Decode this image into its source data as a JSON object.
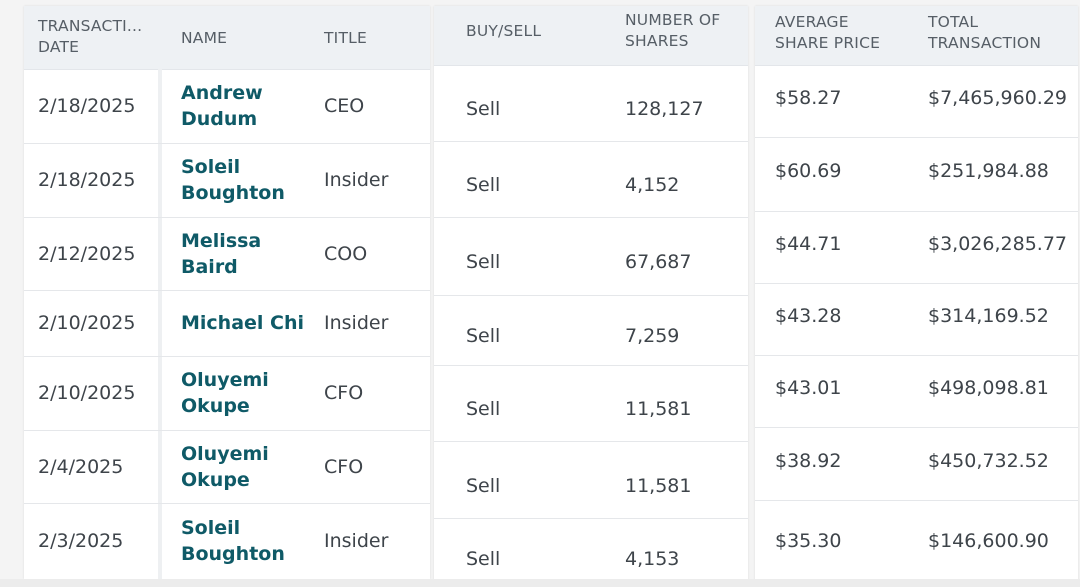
{
  "headers": {
    "date": "TRANSACTI...\nDATE",
    "name": "NAME",
    "title": "TITLE",
    "buy_sell": "BUY/SELL",
    "shares": "NUMBER OF\nSHARES",
    "avg_price": "AVERAGE\nSHARE PRICE",
    "total": "TOTAL\nTRANSACTION"
  },
  "rows": [
    {
      "date": "2/18/2025",
      "name": "Andrew\nDudum",
      "title": "CEO",
      "type": "Sell",
      "shares": "128,127",
      "price": "$58.27",
      "total": "$7,465,960.29"
    },
    {
      "date": "2/18/2025",
      "name": "Soleil\nBoughton",
      "title": "Insider",
      "type": "Sell",
      "shares": "4,152",
      "price": "$60.69",
      "total": "$251,984.88"
    },
    {
      "date": "2/12/2025",
      "name": "Melissa\nBaird",
      "title": "COO",
      "type": "Sell",
      "shares": "67,687",
      "price": "$44.71",
      "total": "$3,026,285.77"
    },
    {
      "date": "2/10/2025",
      "name": "Michael Chi",
      "title": "Insider",
      "type": "Sell",
      "shares": "7,259",
      "price": "$43.28",
      "total": "$314,169.52"
    },
    {
      "date": "2/10/2025",
      "name": "Oluyemi\nOkupe",
      "title": "CFO",
      "type": "Sell",
      "shares": "11,581",
      "price": "$43.01",
      "total": "$498,098.81"
    },
    {
      "date": "2/4/2025",
      "name": "Oluyemi\nOkupe",
      "title": "CFO",
      "type": "Sell",
      "shares": "11,581",
      "price": "$38.92",
      "total": "$450,732.52"
    },
    {
      "date": "2/3/2025",
      "name": "Soleil\nBoughton",
      "title": "Insider",
      "type": "Sell",
      "shares": "4,153",
      "price": "$35.30",
      "total": "$146,600.90"
    }
  ],
  "colors": {
    "header_bg": "#eef1f4",
    "name_link": "#0f5a67",
    "text": "#3e444a"
  }
}
